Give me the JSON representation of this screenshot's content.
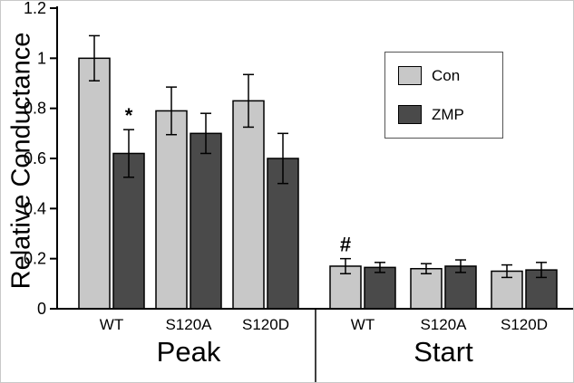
{
  "chart_data": {
    "type": "bar",
    "title": "",
    "ylabel": "Relative Conductance",
    "xlabel": "",
    "ylim": [
      0,
      1.2
    ],
    "yticks": [
      "0",
      "0.2",
      "0.4",
      "0.6",
      "0.8",
      "1",
      "1.2"
    ],
    "grid": false,
    "series_colors": {
      "Con": "#c8c8c8",
      "ZMP": "#4a4a4a"
    },
    "bar_border_color": "#000000",
    "groups": [
      {
        "label": "Peak",
        "categories": [
          "WT",
          "S120A",
          "S120D"
        ],
        "series": [
          {
            "name": "Con",
            "values": [
              1.0,
              0.79,
              0.83
            ],
            "errors": [
              0.09,
              0.095,
              0.105
            ]
          },
          {
            "name": "ZMP",
            "values": [
              0.62,
              0.7,
              0.6
            ],
            "errors": [
              0.095,
              0.08,
              0.1
            ]
          }
        ],
        "annotations": [
          {
            "text": "*",
            "category": "WT",
            "series": "ZMP"
          }
        ]
      },
      {
        "label": "Start",
        "categories": [
          "WT",
          "S120A",
          "S120D"
        ],
        "series": [
          {
            "name": "Con",
            "values": [
              0.17,
              0.16,
              0.15
            ],
            "errors": [
              0.03,
              0.02,
              0.025
            ]
          },
          {
            "name": "ZMP",
            "values": [
              0.165,
              0.17,
              0.155
            ],
            "errors": [
              0.02,
              0.025,
              0.03
            ]
          }
        ],
        "annotations": [
          {
            "text": "#",
            "category": "WT",
            "series": "Con"
          }
        ]
      }
    ],
    "legend": {
      "entries": [
        "Con",
        "ZMP"
      ],
      "position": "top-right"
    }
  }
}
